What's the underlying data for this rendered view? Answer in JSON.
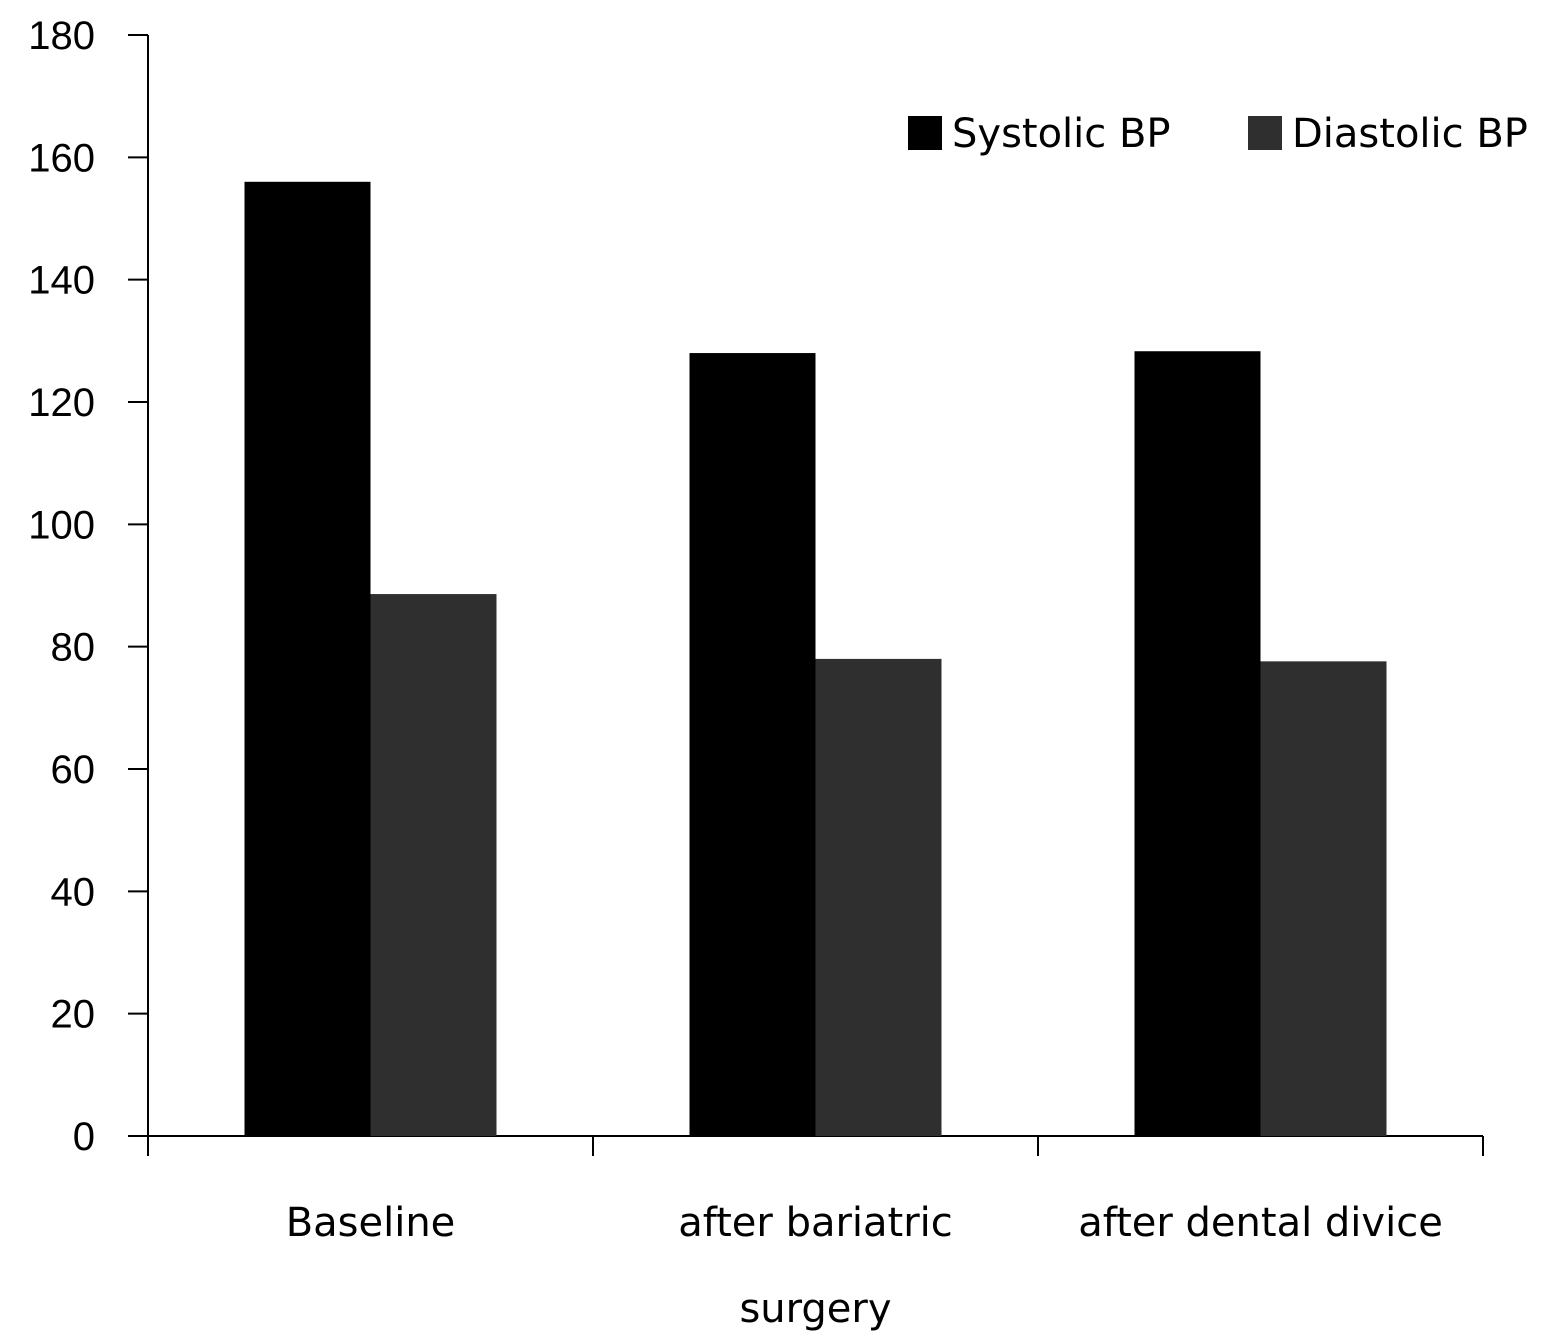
{
  "chart_data": {
    "type": "bar",
    "title": "",
    "xlabel": "",
    "ylabel": "",
    "categories": [
      [
        "Baseline"
      ],
      [
        "after bariatric",
        "surgery"
      ],
      [
        "after dental divice"
      ]
    ],
    "series": [
      {
        "name": "Systolic BP",
        "color": "#000000",
        "values": [
          156,
          128,
          128.3
        ]
      },
      {
        "name": "Diastolic BP",
        "color": "#2f2f2f",
        "values": [
          88.6,
          78,
          77.6
        ]
      }
    ],
    "ylim": [
      0,
      180
    ],
    "yticks": [
      0,
      20,
      40,
      60,
      80,
      100,
      120,
      140,
      160,
      180
    ],
    "grid": false,
    "legend_position": "top-right"
  }
}
